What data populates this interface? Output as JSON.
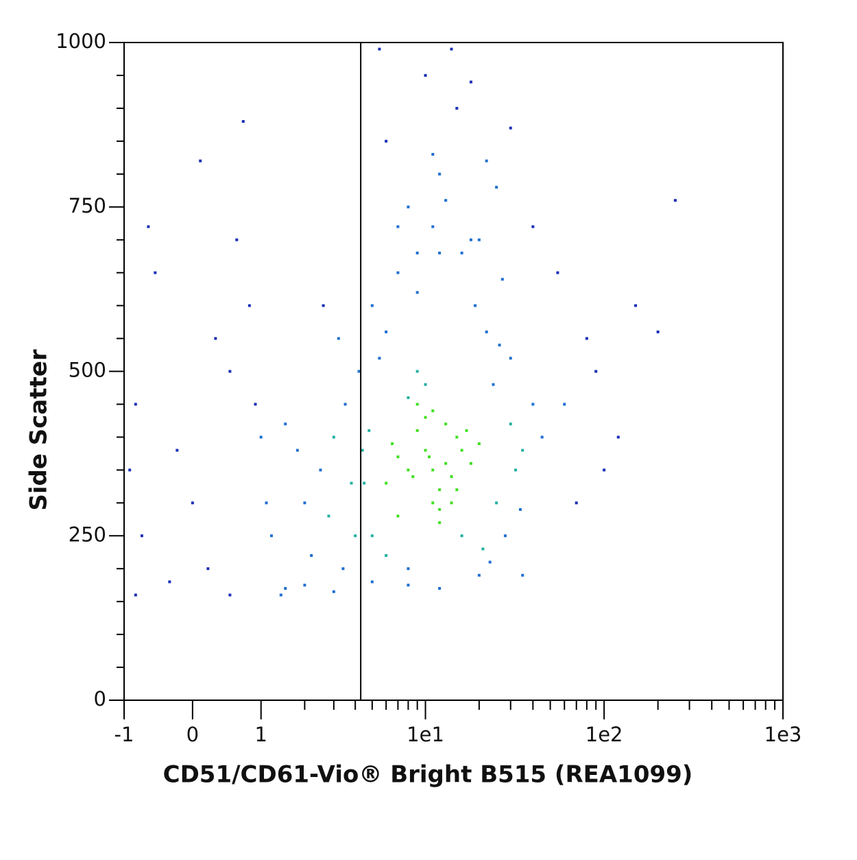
{
  "chart_data": {
    "type": "scatter",
    "xlabel": "CD51/CD61-Vio® Bright B515 (REA1099)",
    "ylabel": "Side Scatter",
    "xscale": "asinh",
    "xlim": [
      -1,
      1000
    ],
    "xticks": [
      -1,
      0,
      1,
      {
        "value": 10,
        "label": "1e1"
      },
      {
        "value": 100,
        "label": "1e2"
      },
      {
        "value": 1000,
        "label": "1e3"
      }
    ],
    "xminorticks": [
      2,
      3,
      4,
      5,
      6,
      7,
      8,
      9,
      20,
      30,
      40,
      50,
      60,
      70,
      80,
      90,
      200,
      300,
      400,
      500,
      600,
      700,
      800,
      900
    ],
    "ylim": [
      0,
      1000
    ],
    "yticks": [
      0,
      250,
      500,
      750,
      1000
    ],
    "yminorticks": [
      50,
      100,
      150,
      200,
      300,
      350,
      400,
      450,
      550,
      600,
      650,
      700,
      800,
      850,
      900,
      950
    ],
    "gate_x": 4.3,
    "colors": [
      "#1a2fb8",
      "#1f6fd0",
      "#22b0a0",
      "#3fe020"
    ],
    "x": [
      8,
      10,
      12,
      15,
      9,
      11,
      7,
      13,
      18,
      6,
      10,
      14,
      9,
      12,
      16,
      8,
      11,
      20,
      7,
      10,
      13,
      9,
      15,
      11,
      6.5,
      12,
      17,
      8.5,
      10.5,
      14,
      5,
      25,
      30,
      5.5,
      22,
      35,
      4.5,
      28,
      19,
      6,
      40,
      24,
      5,
      32,
      21,
      7,
      26,
      4.8,
      45,
      18,
      9,
      30,
      12,
      23,
      16,
      6,
      34,
      11,
      27,
      8,
      2,
      3,
      2.5,
      3.5,
      4,
      1.8,
      2.8,
      3.2,
      4.2,
      2.2,
      3.8,
      1.5,
      2.6,
      3.4,
      4.4,
      -0.8,
      -0.5,
      0,
      0.3,
      0.6,
      1,
      1.2,
      -0.3,
      0.8,
      -0.9,
      0.1,
      0.5,
      1.4,
      -0.6,
      0.9,
      0.2,
      -0.2,
      1.1,
      0.7,
      -0.7,
      8,
      12,
      15,
      20,
      6,
      10,
      25,
      9,
      14,
      30,
      7,
      18,
      11,
      40,
      13,
      16,
      22,
      5.5,
      60,
      80,
      100,
      150,
      70,
      120,
      200,
      55,
      90,
      250,
      0.5,
      1.5,
      3,
      5,
      8,
      12,
      20,
      -0.8,
      2,
      35
    ],
    "values": [
      350,
      380,
      320,
      400,
      450,
      300,
      370,
      420,
      360,
      330,
      480,
      340,
      410,
      290,
      380,
      460,
      350,
      390,
      280,
      430,
      360,
      500,
      320,
      440,
      390,
      270,
      410,
      340,
      370,
      300,
      250,
      300,
      420,
      520,
      560,
      380,
      330,
      250,
      600,
      220,
      450,
      480,
      600,
      350,
      230,
      650,
      540,
      410,
      400,
      700,
      620,
      520,
      680,
      210,
      250,
      560,
      290,
      720,
      640,
      200,
      300,
      400,
      350,
      450,
      250,
      380,
      280,
      550,
      500,
      220,
      330,
      420,
      600,
      200,
      380,
      450,
      650,
      300,
      550,
      700,
      400,
      250,
      180,
      600,
      350,
      820,
      500,
      160,
      720,
      450,
      200,
      380,
      300,
      880,
      250,
      750,
      800,
      900,
      700,
      850,
      950,
      780,
      680,
      990,
      870,
      720,
      940,
      830,
      720,
      760,
      680,
      820,
      990,
      450,
      550,
      350,
      600,
      300,
      400,
      560,
      650,
      500,
      760,
      160,
      170,
      165,
      180,
      175,
      170,
      190,
      160,
      175,
      190
    ]
  }
}
